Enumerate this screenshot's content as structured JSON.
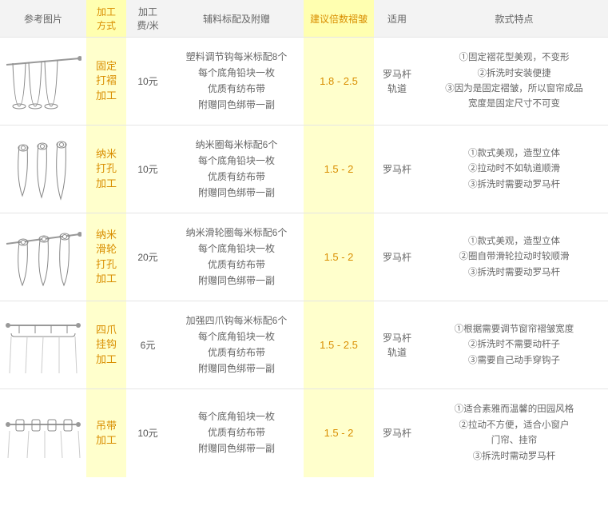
{
  "colors": {
    "highlight_bg": "#ffffcc",
    "highlight_header_bg": "#ffffb0",
    "highlight_text": "#d98e00",
    "header_bg": "#f3f3f3",
    "text": "#555555",
    "border": "#e5e5e5"
  },
  "columns": [
    {
      "key": "image",
      "label": "参考图片",
      "highlight": false
    },
    {
      "key": "process",
      "label": "加工\n方式",
      "highlight": true
    },
    {
      "key": "cost",
      "label": "加工\n费/米",
      "highlight": false
    },
    {
      "key": "materials",
      "label": "辅料标配及附赠",
      "highlight": false
    },
    {
      "key": "pleat",
      "label": "建议倍数褶皱",
      "highlight": true
    },
    {
      "key": "applicable",
      "label": "适用",
      "highlight": false
    },
    {
      "key": "features",
      "label": "款式特点",
      "highlight": false
    }
  ],
  "rows": [
    {
      "process": "固定\n打褶\n加工",
      "cost": "10元",
      "materials": [
        "塑料调节钩每米标配8个",
        "每个底角铅块一枚",
        "优质有纺布带",
        "附赠同色绑带一副"
      ],
      "pleat": "1.8 - 2.5",
      "applicable": "罗马杆\n轨道",
      "features": [
        "①固定褶花型美观，不变形",
        "②拆洗时安装便捷",
        "③因为是固定褶皱，所以窗帘成品",
        "宽度是固定尺寸不可变"
      ]
    },
    {
      "process": "纳米\n打孔\n加工",
      "cost": "10元",
      "materials": [
        "纳米圈每米标配6个",
        "每个底角铅块一枚",
        "优质有纺布带",
        "附赠同色绑带一副"
      ],
      "pleat": "1.5 - 2",
      "applicable": "罗马杆",
      "features": [
        "①款式美观，造型立体",
        "②拉动时不如轨道顺滑",
        "③拆洗时需要动罗马杆"
      ]
    },
    {
      "process": "纳米\n滑轮\n打孔\n加工",
      "cost": "20元",
      "materials": [
        "纳米滑轮圈每米标配6个",
        "每个底角铅块一枚",
        "优质有纺布带",
        "附赠同色绑带一副"
      ],
      "pleat": "1.5 - 2",
      "applicable": "罗马杆",
      "features": [
        "①款式美观，造型立体",
        "②圈自带滑轮拉动时较顺滑",
        "③拆洗时需要动罗马杆"
      ]
    },
    {
      "process": "四爪\n挂钩\n加工",
      "cost": "6元",
      "materials": [
        "加强四爪钩每米标配6个",
        "每个底角铅块一枚",
        "优质有纺布带",
        "附赠同色绑带一副"
      ],
      "pleat": "1.5 - 2.5",
      "applicable": "罗马杆\n轨道",
      "features": [
        "①根据需要调节窗帘褶皱宽度",
        "②拆洗时不需要动杆子",
        "③需要自己动手穿钩子"
      ]
    },
    {
      "process": "吊带\n加工",
      "cost": "10元",
      "materials": [
        "每个底角铅块一枚",
        "优质有纺布带",
        "附赠同色绑带一副"
      ],
      "pleat": "1.5 - 2",
      "applicable": "罗马杆",
      "features": [
        "①适合素雅而温馨的田园风格",
        "②拉动不方便，适合小窗户",
        "门帘、挂帘",
        "③拆洗时需动罗马杆"
      ]
    }
  ],
  "svgs": [
    "<line x1='2' y1='18' x2='94' y2='10' stroke='#999' stroke-width='2'/><circle cx='94' cy='10' r='3' fill='#999'/><path d='M10 16 Q12 70 18 70 Q24 70 26 16' fill='none' stroke='#888'/><path d='M30 15 Q32 70 38 70 Q44 70 46 14' fill='none' stroke='#888'/><path d='M50 13 Q52 70 58 70 Q64 70 66 12' fill='none' stroke='#888'/><ellipse cx='18' cy='70' rx='8' ry='3' fill='none' stroke='#888'/><ellipse cx='38' cy='70' rx='8' ry='3' fill='none' stroke='#888'/><ellipse cx='58' cy='70' rx='8' ry='3' fill='none' stroke='#888'/>",
    "<path d='M18 10 Q14 50 22 72 Q30 50 28 10' fill='none' stroke='#888'/><ellipse cx='23' cy='12' rx='6' ry='4' fill='none' stroke='#888'/><circle cx='23' cy='12' r='2.5' fill='#fff' stroke='#888'/><path d='M42 8 Q38 50 46 74 Q54 50 52 8' fill='none' stroke='#888'/><ellipse cx='47' cy='10' rx='6' ry='4' fill='none' stroke='#888'/><circle cx='47' cy='10' r='2.5' fill='#fff' stroke='#888'/><path d='M66 6 Q62 50 70 76 Q78 50 76 6' fill='none' stroke='#888'/><ellipse cx='71' cy='8' rx='6' ry='4' fill='none' stroke='#888'/><circle cx='71' cy='8' r='2.5' fill='#fff' stroke='#888'/>",
    "<line x1='2' y1='22' x2='94' y2='10' stroke='#999' stroke-width='2'/><circle cx='94' cy='10' r='3' fill='#999'/><path d='M18 20 Q14 55 22 74 Q30 55 28 18' fill='none' stroke='#888'/><ellipse cx='23' cy='20' rx='6' ry='4' fill='none' stroke='#888'/><circle cx='23' cy='20' r='2.5' fill='#fff' stroke='#888'/><path d='M44 17 Q40 55 48 74 Q56 55 54 15' fill='none' stroke='#888'/><ellipse cx='49' cy='16' rx='6' ry='4' fill='none' stroke='#888'/><circle cx='49' cy='16' r='2.5' fill='#fff' stroke='#888'/><path d='M70 13 Q66 55 74 74 Q82 55 80 12' fill='none' stroke='#888'/><ellipse cx='75' cy='13' rx='6' ry='4' fill='none' stroke='#888'/><circle cx='75' cy='13' r='2.5' fill='#fff' stroke='#888'/>",
    "<line x1='4' y1='14' x2='92' y2='14' stroke='#999' stroke-width='2'/><circle cx='4' cy='14' r='3' fill='#999'/><circle cx='92' cy='14' r='3' fill='#999'/><line x1='18' y1='14' x2='18' y2='24' stroke='#888'/><line x1='38' y1='14' x2='38' y2='24' stroke='#888'/><line x1='58' y1='14' x2='58' y2='24' stroke='#888'/><line x1='78' y1='14' x2='78' y2='24' stroke='#888'/><path d='M8 24 Q8 28 12 28 L84 28 Q88 28 88 24' fill='none' stroke='#888'/><path d='M8 28 L6 74 M28 28 L26 74 M48 28 L46 74 M68 28 L68 74 M88 28 L90 74' stroke='#ccc' fill='none'/>",
    "<line x1='4' y1='28' x2='92' y2='28' stroke='#999' stroke-width='2'/><circle cx='4' cy='28' r='3' fill='#999'/><circle cx='92' cy='28' r='3' fill='#999'/><rect x='14' y='22' width='10' height='14' rx='2' fill='none' stroke='#888'/><rect x='34' y='22' width='10' height='14' rx='2' fill='none' stroke='#888'/><rect x='54' y='22' width='10' height='14' rx='2' fill='none' stroke='#888'/><rect x='74' y='22' width='10' height='14' rx='2' fill='none' stroke='#888'/><path d='M6 36 L4 70 M30 36 L28 70 M50 36 L50 70 M70 36 L72 70 M92 36 L94 70' stroke='#ccc' fill='none'/>"
  ]
}
